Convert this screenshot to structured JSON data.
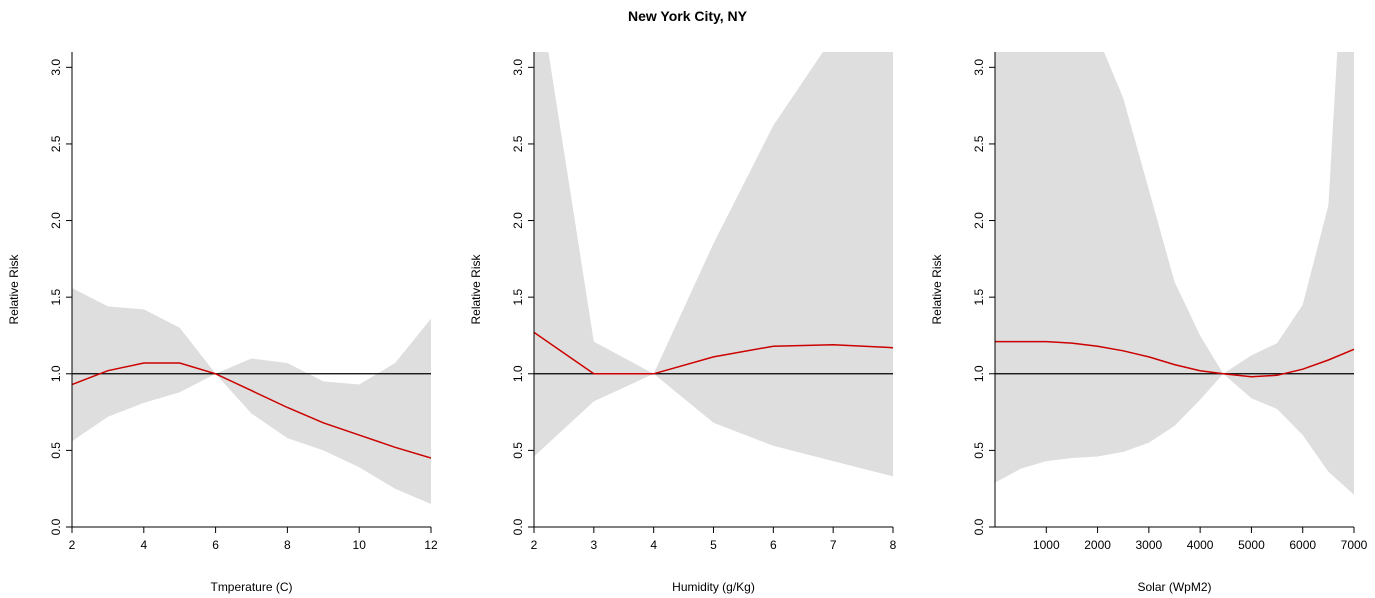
{
  "page": {
    "title": "New York City, NY"
  },
  "chart_data": [
    {
      "type": "line",
      "xlabel": "Tmperature (C)",
      "ylabel": "Relative Risk",
      "xlim": [
        2,
        12
      ],
      "ylim": [
        0,
        3.1
      ],
      "xticks": [
        2,
        4,
        6,
        8,
        10,
        12
      ],
      "yticks": [
        0.0,
        0.5,
        1.0,
        1.5,
        2.0,
        2.5,
        3.0
      ],
      "ytick_labels": [
        "0.0",
        "0.5",
        "1.0",
        "1.5",
        "2.0",
        "2.5",
        "3.0"
      ],
      "reference_line": 1.0,
      "colors": {
        "line": "#cc0000",
        "band": "#dedede",
        "reference": "#000000"
      },
      "x": [
        2,
        3,
        4,
        5,
        6,
        7,
        8,
        9,
        10,
        11,
        12
      ],
      "series": [
        {
          "values": [
            0.93,
            1.02,
            1.07,
            1.07,
            1.0,
            0.89,
            0.78,
            0.68,
            0.6,
            0.52,
            0.45
          ]
        }
      ],
      "band": {
        "lower": [
          0.56,
          0.72,
          0.81,
          0.88,
          1.0,
          0.74,
          0.58,
          0.5,
          0.39,
          0.25,
          0.15
        ],
        "upper": [
          1.56,
          1.44,
          1.42,
          1.3,
          1.0,
          1.1,
          1.07,
          0.95,
          0.93,
          1.07,
          1.36
        ]
      }
    },
    {
      "type": "line",
      "xlabel": "Humidity (g/Kg)",
      "ylabel": "Relative Risk",
      "xlim": [
        2,
        8
      ],
      "ylim": [
        0,
        3.1
      ],
      "xticks": [
        2,
        3,
        4,
        5,
        6,
        7,
        8
      ],
      "yticks": [
        0.0,
        0.5,
        1.0,
        1.5,
        2.0,
        2.5,
        3.0
      ],
      "ytick_labels": [
        "0.0",
        "0.5",
        "1.0",
        "1.5",
        "2.0",
        "2.5",
        "3.0"
      ],
      "reference_line": 1.0,
      "colors": {
        "line": "#cc0000",
        "band": "#dedede",
        "reference": "#000000"
      },
      "x": [
        2,
        3,
        4,
        5,
        6,
        7,
        8
      ],
      "series": [
        {
          "values": [
            1.27,
            1.0,
            1.0,
            1.11,
            1.18,
            1.19,
            1.17
          ]
        }
      ],
      "band": {
        "lower": [
          0.46,
          0.82,
          1.0,
          0.68,
          0.53,
          0.43,
          0.33
        ],
        "upper": [
          3.7,
          1.21,
          1.0,
          1.85,
          2.62,
          3.2,
          3.9
        ]
      }
    },
    {
      "type": "line",
      "xlabel": "Solar (WpM2)",
      "ylabel": "Relative Risk",
      "xlim": [
        0,
        7000
      ],
      "ylim": [
        0,
        3.1
      ],
      "xticks": [
        1000,
        2000,
        3000,
        4000,
        5000,
        6000,
        7000
      ],
      "yticks": [
        0.0,
        0.5,
        1.0,
        1.5,
        2.0,
        2.5,
        3.0
      ],
      "ytick_labels": [
        "0.0",
        "0.5",
        "1.0",
        "1.5",
        "2.0",
        "2.5",
        "3.0"
      ],
      "reference_line": 1.0,
      "colors": {
        "line": "#cc0000",
        "band": "#dedede",
        "reference": "#000000"
      },
      "x": [
        0,
        500,
        1000,
        1500,
        2000,
        2500,
        3000,
        3500,
        4000,
        4450,
        5000,
        5500,
        6000,
        6500,
        7000
      ],
      "series": [
        {
          "values": [
            1.21,
            1.21,
            1.21,
            1.2,
            1.18,
            1.15,
            1.11,
            1.06,
            1.02,
            1.0,
            0.98,
            0.99,
            1.03,
            1.09,
            1.16
          ]
        }
      ],
      "band": {
        "lower": [
          0.29,
          0.38,
          0.43,
          0.45,
          0.46,
          0.49,
          0.55,
          0.66,
          0.83,
          1.0,
          0.84,
          0.77,
          0.6,
          0.36,
          0.21
        ],
        "upper": [
          5.0,
          5.0,
          4.5,
          3.9,
          3.2,
          2.8,
          2.2,
          1.6,
          1.25,
          1.0,
          1.12,
          1.2,
          1.45,
          2.1,
          5.0
        ]
      }
    }
  ]
}
